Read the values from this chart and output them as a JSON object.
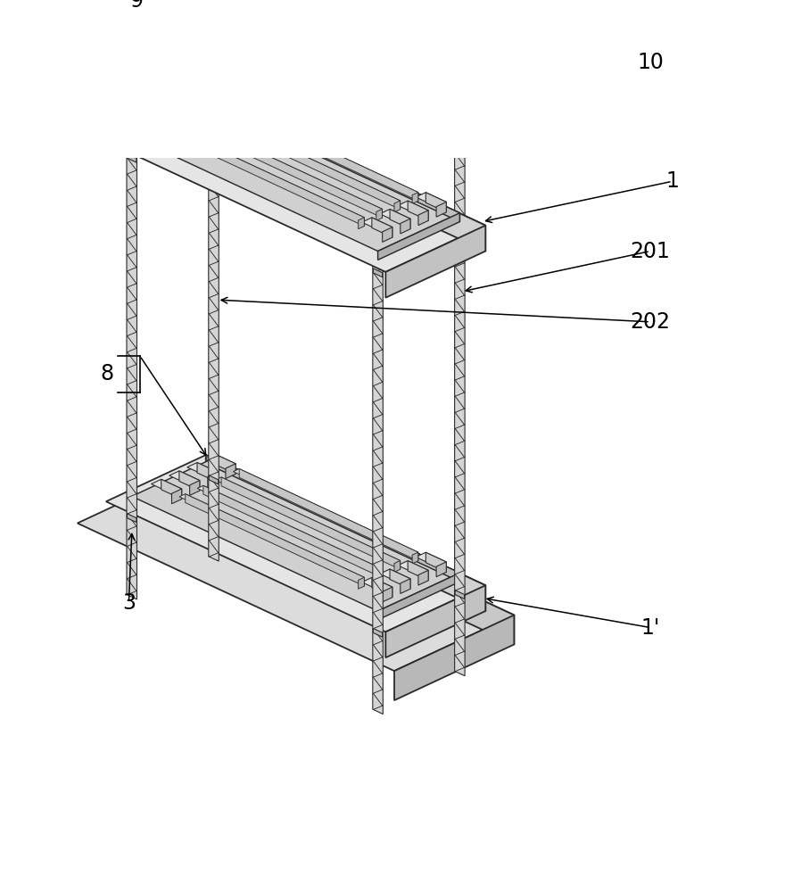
{
  "bg_color": "#ffffff",
  "line_color": "#2a2a2a",
  "fill_top": "#e8e8e8",
  "fill_front": "#d0d0d0",
  "fill_right": "#c0c0c0",
  "fill_tray": "#d5d5d5",
  "fill_sensor_top": "#e0e0e0",
  "fill_sensor_front": "#c5c5c5",
  "fill_sensor_right": "#b5b5b5",
  "font_size": 17,
  "lw_main": 1.3,
  "lw_thin": 0.8,
  "lw_rod": 0.7
}
